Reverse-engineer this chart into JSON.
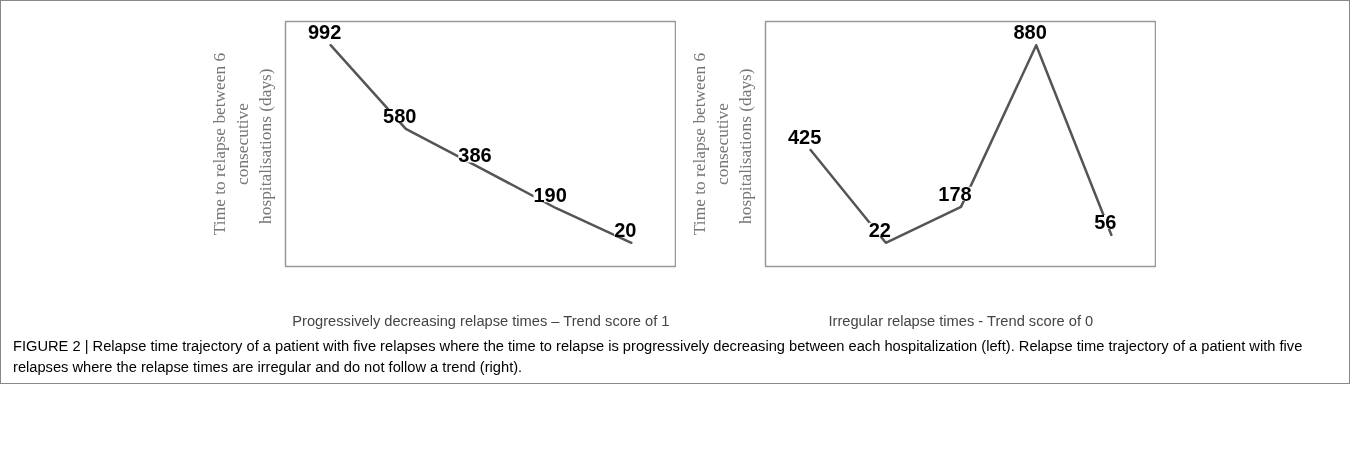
{
  "chart_data": [
    {
      "type": "line",
      "categories": [
        null,
        null,
        null,
        null,
        null
      ],
      "values": [
        992,
        580,
        386,
        190,
        20
      ],
      "color": "#555555",
      "data_labels": true,
      "tick_labels": false,
      "grid": false,
      "marker": "none",
      "ylabel": "Time to relapse between 6\nconsecutive\nhospitalisations  (days)",
      "xlabel": "Progressively decreasing relapse times – Trend score of 1",
      "annotations": [
        "FIGURE 2 | Relapse time trajectory of a patient with five relapses where the time to relapse is progressively decreasing between each hospitalization (left). Relapse time trajectory of a patient with five relapses where the relapse times are irregular and do not follow a trend (right)."
      ]
    },
    {
      "type": "line",
      "categories": [
        null,
        null,
        null,
        null,
        null
      ],
      "values": [
        425,
        22,
        178,
        880,
        56
      ],
      "color": "#555555",
      "data_labels": true,
      "tick_labels": false,
      "grid": false,
      "marker": "none",
      "ylabel": "Time to relapse between 6\nconsecutive\nhospitalisations  (days)",
      "xlabel": "Irregular relapse times - Trend score of 0"
    }
  ]
}
